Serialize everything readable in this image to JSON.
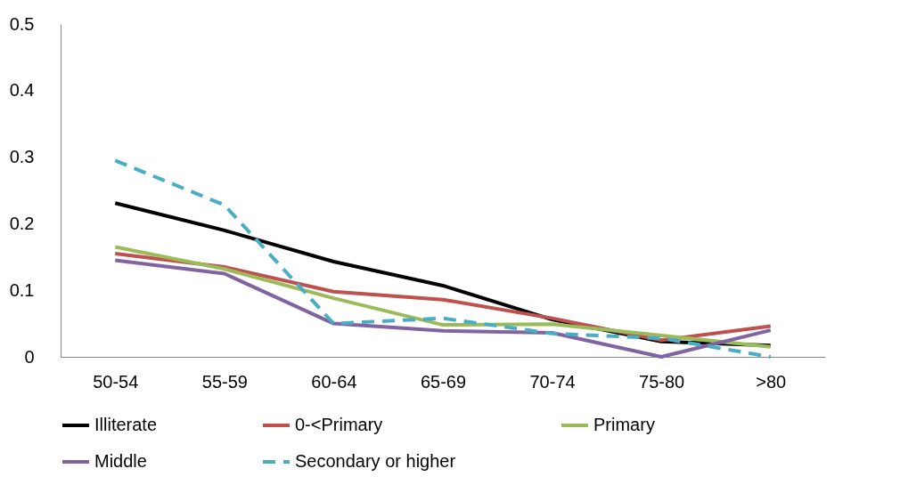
{
  "chart_data": {
    "type": "line",
    "categories": [
      "50-54",
      "55-59",
      "60-64",
      "65-69",
      "70-74",
      "75-80",
      ">80"
    ],
    "series": [
      {
        "name": "Illiterate",
        "color": "#000000",
        "values": [
          0.231,
          0.19,
          0.143,
          0.107,
          0.056,
          0.023,
          0.017
        ]
      },
      {
        "name": "0-<Primary",
        "color": "#c0504d",
        "values": [
          0.155,
          0.135,
          0.098,
          0.086,
          0.058,
          0.025,
          0.046
        ]
      },
      {
        "name": "Primary",
        "color": "#9bbb59",
        "values": [
          0.165,
          0.132,
          0.088,
          0.048,
          0.049,
          0.032,
          0.015
        ]
      },
      {
        "name": "Middle",
        "color": "#8064a2",
        "values": [
          0.145,
          0.125,
          0.05,
          0.039,
          0.036,
          0.0,
          0.04
        ]
      },
      {
        "name": "Secondary or higher",
        "color": "#4bacc6",
        "line_style": "dashed",
        "values": [
          0.295,
          0.228,
          0.05,
          0.058,
          0.035,
          0.028,
          0.0
        ]
      }
    ],
    "ylim": [
      0,
      0.5
    ],
    "yticks": [
      0,
      0.1,
      0.2,
      0.3,
      0.4,
      0.5
    ],
    "grid": false,
    "legend": "bottom",
    "marker": "none",
    "line_style": "solid"
  }
}
